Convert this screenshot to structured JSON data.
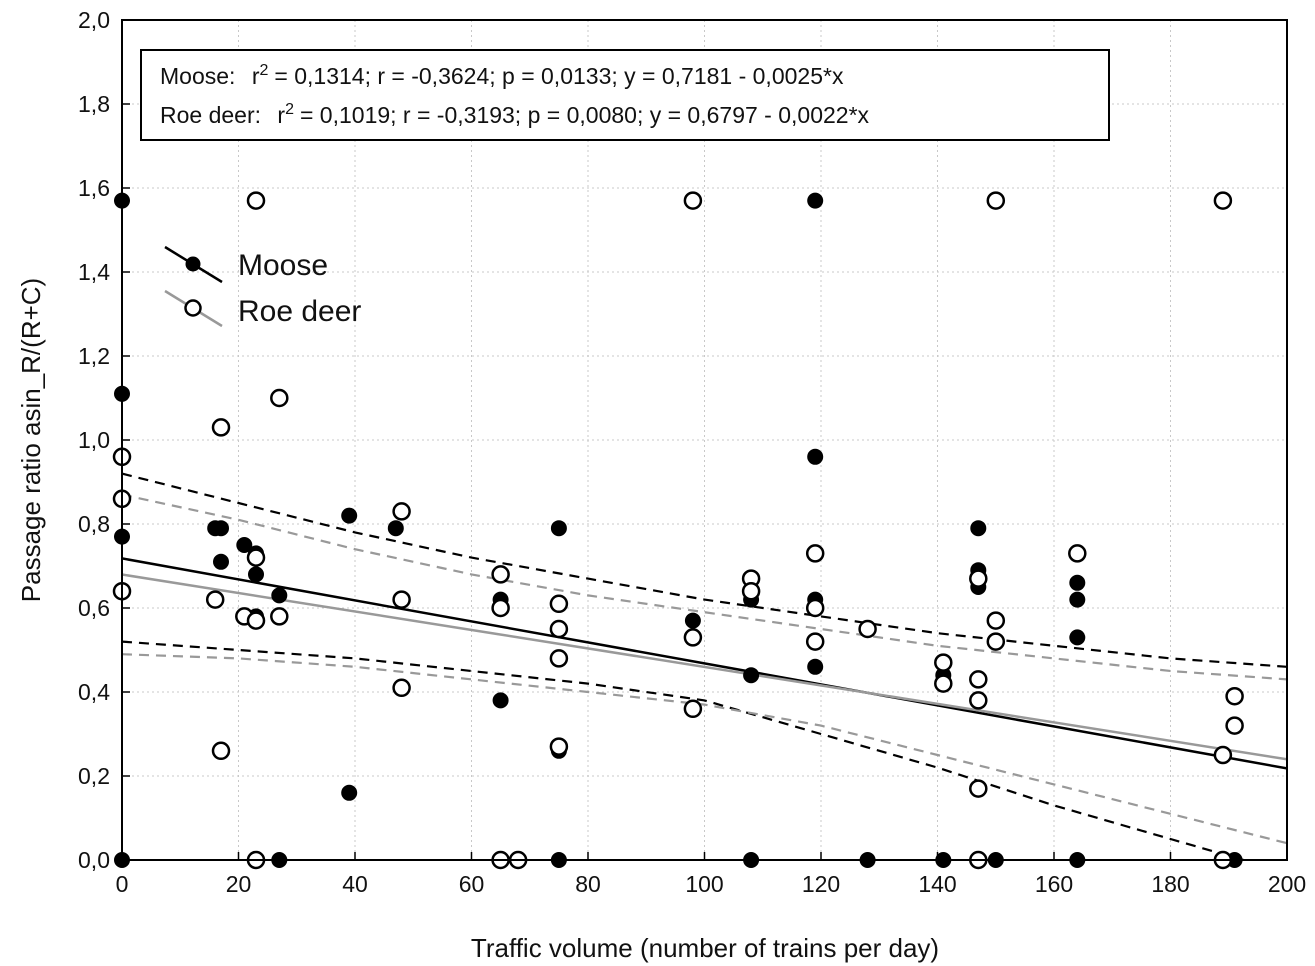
{
  "chart_data": {
    "type": "scatter",
    "xlabel": "Traffic volume (number of trains per day)",
    "ylabel": "Passage ratio asin_R/(R+C)",
    "xlim": [
      0,
      200
    ],
    "ylim": [
      0,
      2.0
    ],
    "x_ticks": [
      "0",
      "20",
      "40",
      "60",
      "80",
      "100",
      "120",
      "140",
      "160",
      "180",
      "200"
    ],
    "y_ticks": [
      "0,0",
      "0,2",
      "0,4",
      "0,6",
      "0,8",
      "1,0",
      "1,2",
      "1,4",
      "1,6",
      "1,8",
      "2,0"
    ],
    "grid": true,
    "stats": {
      "moose_label": "Moose:",
      "moose_r2_prefix": "r",
      "moose_r2_sup": "2",
      "moose_rest": "= 0,1314;  r = -0,3624; p = 0,0133;  y = 0,7181 - 0,0025*x",
      "roe_label": "Roe deer:",
      "roe_r2_prefix": "r",
      "roe_r2_sup": "2",
      "roe_rest": "= 0,1019;  r = -0,3193; p = 0,0080;  y = 0,6797 - 0,0022*x"
    },
    "legend_position": "upper-left",
    "series": [
      {
        "name": "Moose",
        "marker": "filled-circle",
        "color": "#000000",
        "fit": {
          "intercept": 0.7181,
          "slope": -0.0025
        },
        "ci_upper": [
          [
            0,
            0.92
          ],
          [
            20,
            0.85
          ],
          [
            40,
            0.78
          ],
          [
            60,
            0.72
          ],
          [
            80,
            0.67
          ],
          [
            100,
            0.62
          ],
          [
            120,
            0.58
          ],
          [
            140,
            0.54
          ],
          [
            160,
            0.51
          ],
          [
            180,
            0.48
          ],
          [
            200,
            0.46
          ]
        ],
        "ci_lower": [
          [
            0,
            0.52
          ],
          [
            20,
            0.5
          ],
          [
            40,
            0.48
          ],
          [
            60,
            0.45
          ],
          [
            80,
            0.42
          ],
          [
            100,
            0.38
          ],
          [
            120,
            0.3
          ],
          [
            140,
            0.22
          ],
          [
            160,
            0.13
          ],
          [
            180,
            0.05
          ],
          [
            200,
            -0.03
          ]
        ],
        "points": [
          [
            0,
            1.57
          ],
          [
            0,
            1.11
          ],
          [
            0,
            0.77
          ],
          [
            0,
            0.0
          ],
          [
            16,
            0.79
          ],
          [
            17,
            0.79
          ],
          [
            17,
            0.71
          ],
          [
            21,
            0.75
          ],
          [
            23,
            0.73
          ],
          [
            23,
            0.68
          ],
          [
            23,
            0.58
          ],
          [
            27,
            0.63
          ],
          [
            27,
            0.0
          ],
          [
            39,
            0.82
          ],
          [
            39,
            0.16
          ],
          [
            47,
            0.79
          ],
          [
            65,
            0.62
          ],
          [
            65,
            0.38
          ],
          [
            75,
            0.79
          ],
          [
            75,
            0.26
          ],
          [
            75,
            0.0
          ],
          [
            98,
            0.57
          ],
          [
            108,
            0.62
          ],
          [
            108,
            0.44
          ],
          [
            108,
            0.0
          ],
          [
            119,
            1.57
          ],
          [
            119,
            0.96
          ],
          [
            119,
            0.62
          ],
          [
            119,
            0.46
          ],
          [
            128,
            0.0
          ],
          [
            141,
            0.44
          ],
          [
            141,
            0.0
          ],
          [
            147,
            0.79
          ],
          [
            147,
            0.69
          ],
          [
            147,
            0.65
          ],
          [
            150,
            0.0
          ],
          [
            164,
            0.66
          ],
          [
            164,
            0.62
          ],
          [
            164,
            0.53
          ],
          [
            164,
            0.0
          ],
          [
            191,
            0.0
          ]
        ]
      },
      {
        "name": "Roe deer",
        "marker": "open-circle",
        "color": "#999999",
        "fit": {
          "intercept": 0.6797,
          "slope": -0.0022
        },
        "ci_upper": [
          [
            0,
            0.87
          ],
          [
            20,
            0.81
          ],
          [
            40,
            0.74
          ],
          [
            60,
            0.68
          ],
          [
            80,
            0.63
          ],
          [
            100,
            0.59
          ],
          [
            120,
            0.55
          ],
          [
            140,
            0.51
          ],
          [
            160,
            0.48
          ],
          [
            180,
            0.45
          ],
          [
            200,
            0.43
          ]
        ],
        "ci_lower": [
          [
            0,
            0.49
          ],
          [
            20,
            0.48
          ],
          [
            40,
            0.46
          ],
          [
            60,
            0.43
          ],
          [
            80,
            0.4
          ],
          [
            100,
            0.37
          ],
          [
            120,
            0.32
          ],
          [
            140,
            0.25
          ],
          [
            160,
            0.18
          ],
          [
            180,
            0.11
          ],
          [
            200,
            0.04
          ]
        ],
        "points": [
          [
            0,
            0.96
          ],
          [
            0,
            0.86
          ],
          [
            0,
            0.64
          ],
          [
            16,
            0.62
          ],
          [
            17,
            1.03
          ],
          [
            17,
            0.26
          ],
          [
            21,
            0.58
          ],
          [
            23,
            1.57
          ],
          [
            23,
            0.72
          ],
          [
            23,
            0.57
          ],
          [
            23,
            0.0
          ],
          [
            27,
            1.1
          ],
          [
            27,
            0.58
          ],
          [
            48,
            0.83
          ],
          [
            48,
            0.62
          ],
          [
            48,
            0.41
          ],
          [
            65,
            0.68
          ],
          [
            65,
            0.6
          ],
          [
            65,
            0.0
          ],
          [
            68,
            0.0
          ],
          [
            75,
            0.61
          ],
          [
            75,
            0.55
          ],
          [
            75,
            0.48
          ],
          [
            75,
            0.27
          ],
          [
            98,
            1.57
          ],
          [
            98,
            0.53
          ],
          [
            98,
            0.36
          ],
          [
            108,
            0.67
          ],
          [
            108,
            0.64
          ],
          [
            119,
            0.73
          ],
          [
            119,
            0.6
          ],
          [
            119,
            0.52
          ],
          [
            128,
            0.55
          ],
          [
            141,
            0.47
          ],
          [
            141,
            0.42
          ],
          [
            147,
            0.67
          ],
          [
            147,
            0.43
          ],
          [
            147,
            0.38
          ],
          [
            147,
            0.17
          ],
          [
            147,
            0.0
          ],
          [
            150,
            1.57
          ],
          [
            150,
            0.57
          ],
          [
            150,
            0.52
          ],
          [
            164,
            0.73
          ],
          [
            189,
            1.57
          ],
          [
            189,
            0.25
          ],
          [
            189,
            0.0
          ],
          [
            191,
            0.39
          ],
          [
            191,
            0.32
          ]
        ]
      }
    ]
  }
}
